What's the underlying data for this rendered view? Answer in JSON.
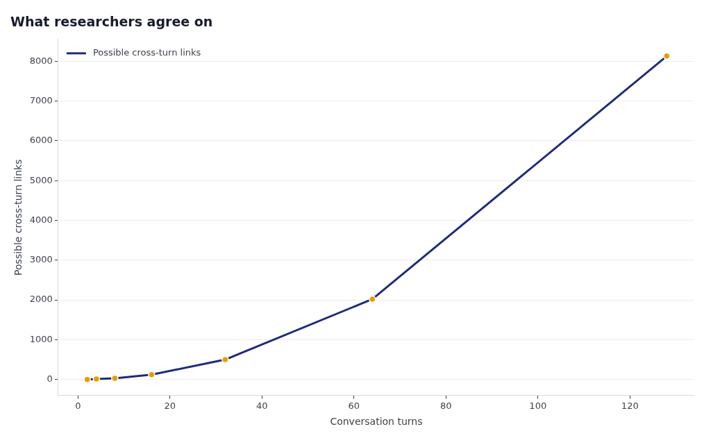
{
  "chart_data": {
    "type": "line",
    "title": "What researchers agree on",
    "xlabel": "Conversation turns",
    "ylabel": "Possible cross-turn links",
    "x": [
      2,
      4,
      8,
      16,
      32,
      64,
      128
    ],
    "series": [
      {
        "name": "Possible cross-turn links",
        "color": "#1f2a7a",
        "colors": [
          "#e69f00",
          "#e69f00",
          "#e69f00",
          "#e69f00",
          "#e69f00",
          "#e69f00",
          "#e69f00"
        ],
        "values": [
          0,
          10,
          30,
          120,
          500,
          2020,
          8130
        ]
      }
    ],
    "xlim": [
      -4.3,
      134
    ],
    "ylim": [
      -400,
      8550
    ],
    "xticks": [
      0,
      20,
      40,
      60,
      80,
      100,
      120
    ],
    "yticks": [
      0,
      1000,
      2000,
      3000,
      4000,
      5000,
      6000,
      7000,
      8000
    ],
    "grid": "y",
    "legend": "top left",
    "marker": "circle",
    "line_style": "solid"
  }
}
